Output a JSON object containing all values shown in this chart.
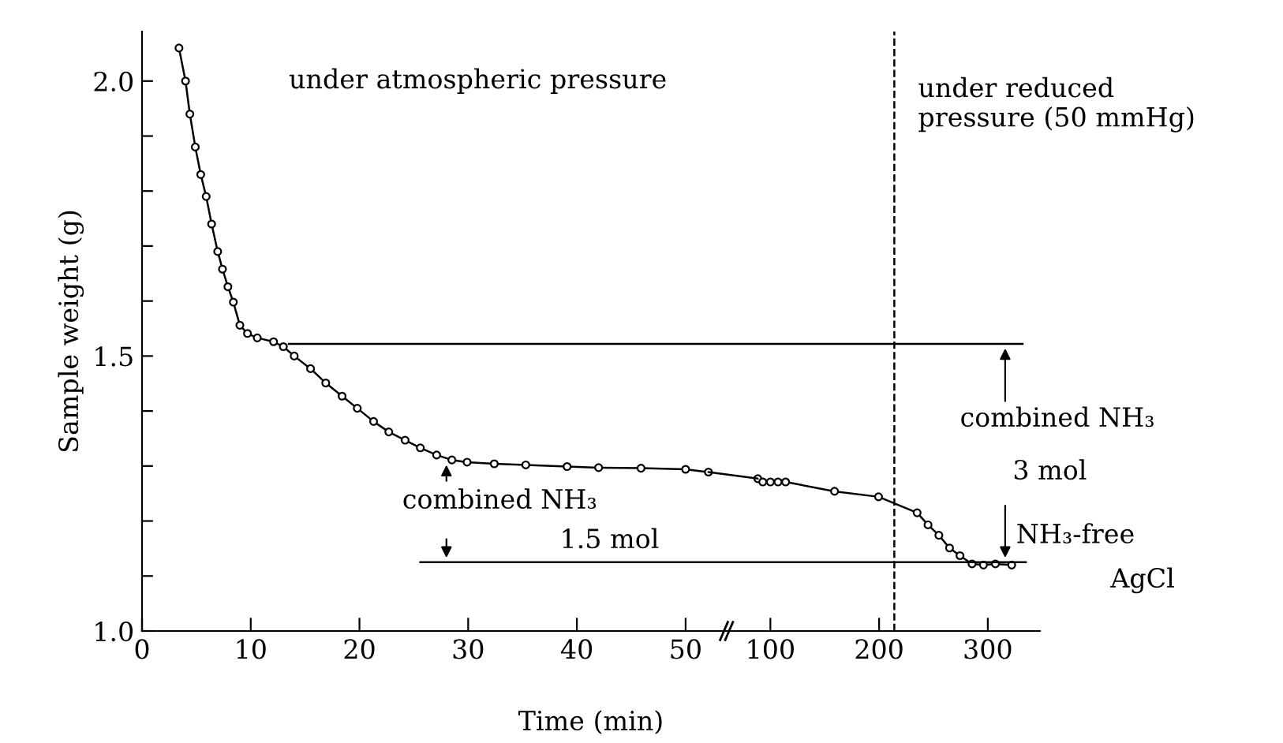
{
  "chart_data": [
    {
      "type": "line",
      "ylabel": "Sample weight (g)",
      "xlabel": "Time (min)",
      "xlim": [
        0,
        54
      ],
      "xticks": [
        0,
        10,
        20,
        30,
        40,
        50
      ],
      "ylim": [
        1.0,
        2.09
      ],
      "yticks": [
        {
          "value": 1,
          "label": "1.0"
        },
        {
          "value": 1.1,
          "label": null
        },
        {
          "value": 1.2,
          "label": null
        },
        {
          "value": 1.3,
          "label": null
        },
        {
          "value": 1.4,
          "label": null
        },
        1.5,
        {
          "value": 1.6,
          "label": null
        },
        {
          "value": 1.7,
          "label": null
        },
        {
          "value": 1.8,
          "label": null
        },
        {
          "value": 1.9,
          "label": null
        },
        {
          "value": 2,
          "label": "2.0"
        }
      ],
      "marker": "circle",
      "grid": false,
      "legend": false,
      "series": [
        {
          "color": "#000000",
          "x": [
            3.4,
            4.0,
            4.4,
            4.9,
            5.4,
            5.9,
            6.4,
            6.96,
            7.4,
            7.9,
            8.4,
            9.0,
            9.7,
            10.6,
            12.1,
            13.0,
            14.0,
            15.5,
            16.9,
            18.4,
            19.8,
            21.3,
            22.7,
            24.2,
            25.6,
            27.1,
            28.5,
            29.9,
            32.4,
            35.3,
            39.1,
            42.0,
            45.9,
            50.0,
            52.1
          ],
          "values": [
            2.06,
            2.0,
            1.94,
            1.88,
            1.83,
            1.79,
            1.74,
            1.69,
            1.658,
            1.626,
            1.598,
            1.556,
            1.541,
            1.533,
            1.526,
            1.517,
            1.5,
            1.477,
            1.451,
            1.427,
            1.405,
            1.381,
            1.362,
            1.347,
            1.333,
            1.32,
            1.311,
            1.307,
            1.304,
            1.302,
            1.299,
            1.297,
            1.296,
            1.294,
            1.289
          ]
        },
        {
          "type": "line",
          "marker": "none",
          "color": "#000000",
          "x": [
            13.5,
            54
          ],
          "values": [
            1.522,
            1.522
          ]
        },
        {
          "type": "line",
          "marker": "none",
          "color": "#000000",
          "x": [
            25.6,
            54
          ],
          "values": [
            1.125,
            1.125
          ]
        }
      ],
      "annotations": [
        "under atmospheric pressure",
        "combined NH₃",
        "1.5 mol"
      ]
    },
    {
      "type": "line",
      "xlim": [
        62,
        348
      ],
      "xticks": [
        100,
        200,
        300
      ],
      "ylim": [
        1.0,
        2.09
      ],
      "tick_labels": "x",
      "marker": "circle",
      "grid": false,
      "legend": false,
      "series": [
        {
          "color": "#000000",
          "x": [
            88.4,
            93,
            100,
            107,
            114,
            159,
            199.5,
            235,
            245,
            255,
            264.8,
            274.4,
            285.5,
            296,
            307,
            322
          ],
          "values": [
            1.277,
            1.271,
            1.271,
            1.271,
            1.271,
            1.254,
            1.244,
            1.215,
            1.193,
            1.174,
            1.151,
            1.137,
            1.122,
            1.12,
            1.122,
            1.12
          ]
        },
        {
          "type": "line",
          "marker": "none",
          "color": "#000000",
          "x": [
            62,
            332
          ],
          "values": [
            1.522,
            1.522
          ]
        },
        {
          "type": "line",
          "marker": "none",
          "color": "#000000",
          "x": [
            62,
            335
          ],
          "values": [
            1.125,
            1.125
          ]
        }
      ],
      "ref_lines": [
        {
          "axis": "x",
          "value": 214,
          "line_style": "dashed",
          "color": "#000000"
        }
      ],
      "annotations": [
        "under reduced\npressure (50 mmHg)",
        "combined NH₃",
        "3 mol",
        "NH₃-free",
        "AgCl"
      ]
    }
  ]
}
